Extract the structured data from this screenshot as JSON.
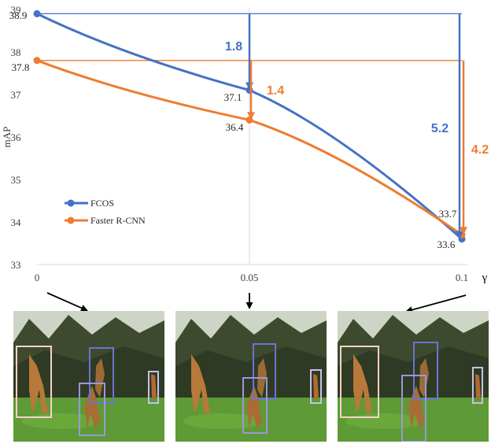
{
  "chart_data": {
    "type": "line",
    "xlabel": "γ",
    "ylabel": "mAP",
    "x": [
      0,
      0.05,
      0.1
    ],
    "x_tick_labels": [
      "0",
      "0.05",
      "0.1"
    ],
    "ylim": [
      33,
      39
    ],
    "y_ticks": [
      33,
      34,
      35,
      36,
      37,
      38,
      39
    ],
    "y_tick_labels": [
      "33",
      "34",
      "35",
      "36",
      "37",
      "38",
      "39"
    ],
    "series": [
      {
        "name": "FCOS",
        "values": [
          38.9,
          37.1,
          33.6
        ],
        "color": "#4472c4",
        "point_labels": [
          "38.9",
          "37.1",
          "33.6"
        ]
      },
      {
        "name": "Faster R-CNN",
        "values": [
          37.8,
          36.4,
          33.7
        ],
        "color": "#ed7d31",
        "point_labels": [
          "37.8",
          "36.4",
          "33.7"
        ]
      }
    ],
    "drops": [
      {
        "series": 0,
        "x": 0.05,
        "label": "1.8"
      },
      {
        "series": 1,
        "x": 0.05,
        "label": "1.4"
      },
      {
        "series": 0,
        "x": 0.1,
        "label": "5.2"
      },
      {
        "series": 1,
        "x": 0.1,
        "label": "4.2"
      }
    ],
    "legend_position": "left-middle",
    "grid": "vertical at x = 0.05"
  },
  "thumbnails": [
    {
      "name": "gamma-0-detections",
      "x": 0
    },
    {
      "name": "gamma-0.05-detections",
      "x": 0.05
    },
    {
      "name": "gamma-0.1-detections",
      "x": 0.1
    }
  ]
}
